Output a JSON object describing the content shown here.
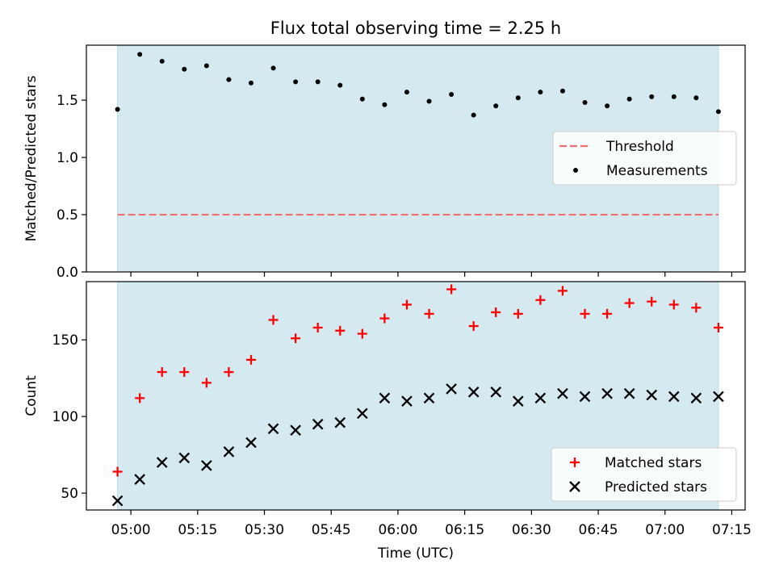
{
  "figure": {
    "title": "Flux total observing time = 2.25 h",
    "xlabel": "Time (UTC)"
  },
  "chart_data": [
    {
      "type": "scatter",
      "title": "Flux total observing time = 2.25 h",
      "ylabel": "Matched/Predicted stars",
      "xlim": [
        "04:50",
        "07:18"
      ],
      "ylim": [
        0,
        1.98
      ],
      "yticks": [
        0.0,
        0.5,
        1.0,
        1.5
      ],
      "ytick_labels": [
        "0.0",
        "0.5",
        "1.0",
        "1.5"
      ],
      "shaded_span": [
        "04:57",
        "07:12"
      ],
      "shade_color": "#d4eaf0",
      "threshold": {
        "name": "Threshold",
        "value": 0.5,
        "x_from": "04:57",
        "x_to": "07:12",
        "color": "#f07070",
        "style": "dashed"
      },
      "legend": {
        "placement": "center-right",
        "entries": [
          "Threshold",
          "Measurements"
        ]
      },
      "series": [
        {
          "name": "Measurements",
          "marker": "dot",
          "color": "#000000",
          "x": [
            "04:57",
            "05:02",
            "05:07",
            "05:12",
            "05:17",
            "05:22",
            "05:27",
            "05:32",
            "05:37",
            "05:42",
            "05:47",
            "05:52",
            "05:57",
            "06:02",
            "06:07",
            "06:12",
            "06:17",
            "06:22",
            "06:27",
            "06:32",
            "06:37",
            "06:42",
            "06:47",
            "06:52",
            "06:57",
            "07:02",
            "07:07",
            "07:12"
          ],
          "values": [
            1.42,
            1.9,
            1.84,
            1.77,
            1.8,
            1.68,
            1.65,
            1.78,
            1.66,
            1.66,
            1.63,
            1.51,
            1.46,
            1.57,
            1.49,
            1.55,
            1.37,
            1.45,
            1.52,
            1.57,
            1.58,
            1.48,
            1.45,
            1.51,
            1.53,
            1.53,
            1.52,
            1.4
          ]
        }
      ]
    },
    {
      "type": "scatter",
      "ylabel": "Count",
      "xlabel": "Time (UTC)",
      "xlim": [
        "04:50",
        "07:18"
      ],
      "ylim": [
        39,
        188
      ],
      "yticks": [
        50,
        100,
        150
      ],
      "ytick_labels": [
        "50",
        "100",
        "150"
      ],
      "xticks": [
        "05:00",
        "05:15",
        "05:30",
        "05:45",
        "06:00",
        "06:15",
        "06:30",
        "06:45",
        "07:00",
        "07:15"
      ],
      "shaded_span": [
        "04:57",
        "07:12"
      ],
      "shade_color": "#d4eaf0",
      "legend": {
        "placement": "bottom-right",
        "entries": [
          "Matched stars",
          "Predicted stars"
        ]
      },
      "series": [
        {
          "name": "Matched stars",
          "marker": "plus",
          "color": "#ff0000",
          "x": [
            "04:57",
            "05:02",
            "05:07",
            "05:12",
            "05:17",
            "05:22",
            "05:27",
            "05:32",
            "05:37",
            "05:42",
            "05:47",
            "05:52",
            "05:57",
            "06:02",
            "06:07",
            "06:12",
            "06:17",
            "06:22",
            "06:27",
            "06:32",
            "06:37",
            "06:42",
            "06:47",
            "06:52",
            "06:57",
            "07:02",
            "07:07",
            "07:12"
          ],
          "values": [
            64,
            112,
            129,
            129,
            122,
            129,
            137,
            163,
            151,
            158,
            156,
            154,
            164,
            173,
            167,
            183,
            159,
            168,
            167,
            176,
            182,
            167,
            167,
            174,
            175,
            173,
            171,
            158
          ]
        },
        {
          "name": "Predicted stars",
          "marker": "x",
          "color": "#000000",
          "x": [
            "04:57",
            "05:02",
            "05:07",
            "05:12",
            "05:17",
            "05:22",
            "05:27",
            "05:32",
            "05:37",
            "05:42",
            "05:47",
            "05:52",
            "05:57",
            "06:02",
            "06:07",
            "06:12",
            "06:17",
            "06:22",
            "06:27",
            "06:32",
            "06:37",
            "06:42",
            "06:47",
            "06:52",
            "06:57",
            "07:02",
            "07:07",
            "07:12"
          ],
          "values": [
            45,
            59,
            70,
            73,
            68,
            77,
            83,
            92,
            91,
            95,
            96,
            102,
            112,
            110,
            112,
            118,
            116,
            116,
            110,
            112,
            115,
            113,
            115,
            115,
            114,
            113,
            112,
            113
          ]
        }
      ]
    }
  ]
}
